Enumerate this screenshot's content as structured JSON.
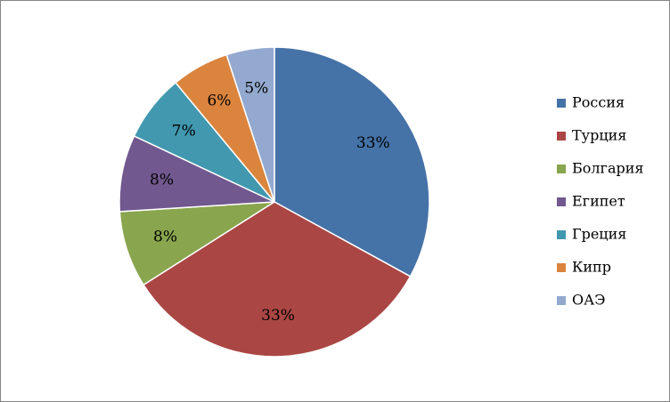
{
  "chart_data": {
    "type": "pie",
    "categories": [
      "Россия",
      "Турция",
      "Болгария",
      "Египет",
      "Греция",
      "Кипр",
      "ОАЭ"
    ],
    "values": [
      33,
      33,
      8,
      8,
      7,
      6,
      5
    ],
    "value_labels": [
      "33%",
      "33%",
      "8%",
      "8%",
      "7%",
      "6%",
      "5%"
    ],
    "colors": [
      "#4572a7",
      "#aa4643",
      "#89a54e",
      "#71588f",
      "#4198af",
      "#db843d",
      "#93a9cf"
    ],
    "legend": "right"
  }
}
